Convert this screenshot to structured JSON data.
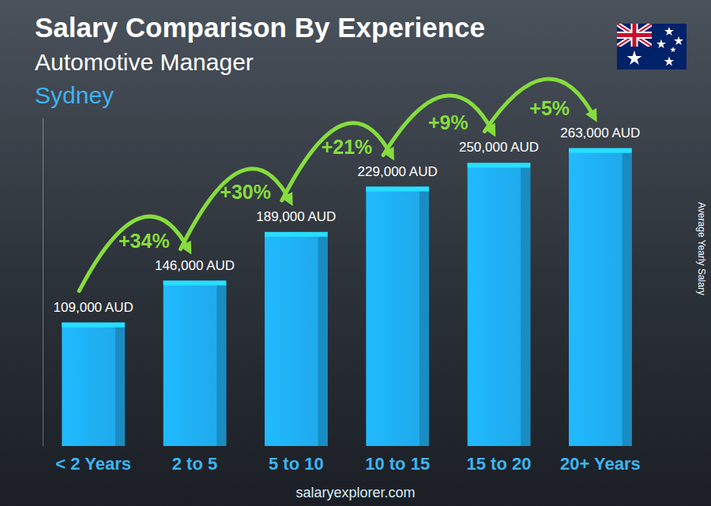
{
  "chart_data": {
    "type": "bar",
    "title": "Salary Comparison By Experience",
    "subtitle": "Automotive Manager",
    "location": "Sydney",
    "y_label": "Average Yearly Salary",
    "source": "salaryexplorer.com",
    "categories": [
      "< 2 Years",
      "2 to 5",
      "5 to 10",
      "10 to 15",
      "15 to 20",
      "20+ Years"
    ],
    "values": [
      109000,
      146000,
      189000,
      229000,
      250000,
      263000
    ],
    "value_labels": [
      "109,000 AUD",
      "146,000 AUD",
      "189,000 AUD",
      "229,000 AUD",
      "250,000 AUD",
      "263,000 AUD"
    ],
    "annotations": [
      "+34%",
      "+30%",
      "+21%",
      "+9%",
      "+5%"
    ],
    "color": "#1ea7e8",
    "ylim": [
      0,
      290000
    ],
    "data_labels": true,
    "tick_labels": "x",
    "grid": false
  }
}
